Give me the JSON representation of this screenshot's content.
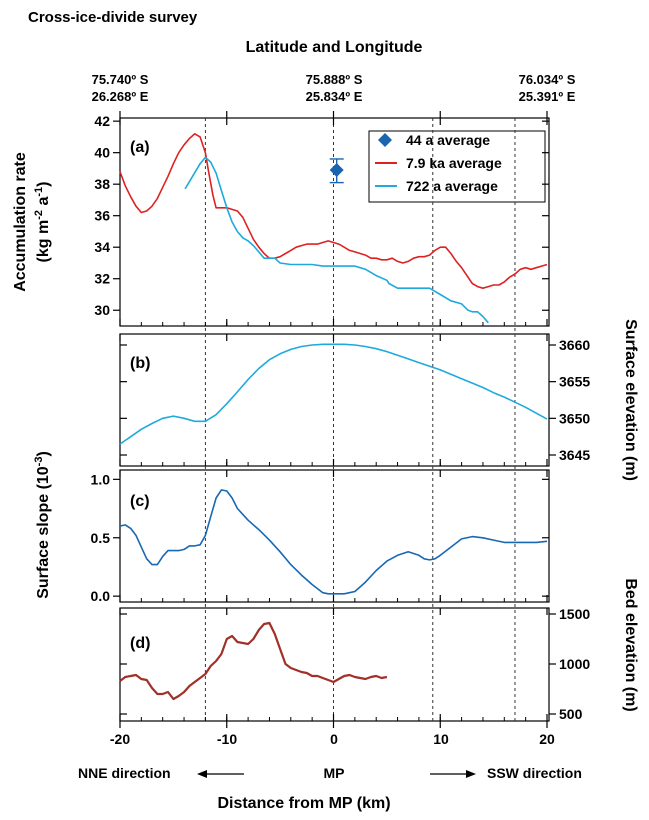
{
  "figure": {
    "title": "Cross-ice-divide survey",
    "top_axis_title": "Latitude and Longitude",
    "top_ticks": [
      {
        "x": -20,
        "lat": "75.740º S",
        "lon": "26.268º E"
      },
      {
        "x": 0,
        "lat": "75.888º S",
        "lon": "25.834º E"
      },
      {
        "x": 20,
        "lat": "76.034º S",
        "lon": "25.391º E"
      }
    ],
    "xlabel": "Distance from MP (km)",
    "x_tick_labels": [
      "-20",
      "-10",
      "0",
      "10",
      "20"
    ],
    "x_ticks": [
      -20,
      -10,
      0,
      10,
      20
    ],
    "xlim": [
      -20,
      20
    ],
    "direction_left": "NNE direction",
    "direction_center": "MP",
    "direction_right": "SSW direction",
    "reference_lines_x": [
      -12,
      0,
      9.3,
      17
    ],
    "colors": {
      "red": "#dd2222",
      "cyan": "#1eaadd",
      "blue": "#1868b4",
      "diamond": "#1a64b0",
      "brown": "#a03028",
      "grid": "#333333"
    }
  },
  "chart_data": [
    {
      "type": "line",
      "panel": "(a)",
      "ylabel_line1": "Accumulation rate",
      "ylabel_line2": "(kg m",
      "ylabel_sup1": "-2",
      "ylabel_mid": " a",
      "ylabel_sup2": "-1",
      "ylabel_end": ")",
      "ylim": [
        29,
        42.2
      ],
      "yticks": [
        30,
        32,
        34,
        36,
        38,
        40,
        42
      ],
      "ytick_labels": [
        "30",
        "32",
        "34",
        "36",
        "38",
        "40",
        "42"
      ],
      "legend_position": "top-right",
      "series": [
        {
          "name": "44 a average",
          "kind": "point",
          "x": 0.3,
          "y": 38.9,
          "err_low": 38.1,
          "err_high": 39.6
        },
        {
          "name": "7.9 ka average",
          "kind": "line",
          "x": [
            -20,
            -19.5,
            -19,
            -18.5,
            -18,
            -17.5,
            -17,
            -16.5,
            -16,
            -15.5,
            -15,
            -14.5,
            -14,
            -13.5,
            -13,
            -12.5,
            -12,
            -11.7,
            -11.3,
            -11,
            -10.5,
            -10,
            -9.5,
            -9,
            -8.5,
            -8,
            -7.5,
            -7,
            -6.5,
            -6,
            -5.5,
            -5,
            -4.5,
            -4,
            -3.5,
            -3,
            -2.5,
            -2,
            -1.5,
            -1,
            -0.5,
            0,
            0.5,
            1,
            1.5,
            2,
            2.5,
            3,
            3.5,
            4,
            4.5,
            5,
            5.5,
            6,
            6.5,
            7,
            7.5,
            8,
            8.5,
            9,
            9.5,
            10,
            10.5,
            11,
            11.5,
            12,
            12.5,
            13,
            13.5,
            14,
            14.5,
            15,
            15.5,
            16,
            16.5,
            17,
            17.5,
            18,
            18.5,
            19,
            19.5,
            20
          ],
          "y": [
            38.8,
            37.9,
            37.2,
            36.6,
            36.2,
            36.3,
            36.6,
            37.1,
            37.8,
            38.5,
            39.3,
            40.0,
            40.5,
            40.9,
            41.2,
            41.0,
            40.0,
            38.8,
            37.3,
            36.5,
            36.5,
            36.5,
            36.4,
            36.3,
            35.9,
            35.2,
            34.5,
            34.0,
            33.6,
            33.3,
            33.3,
            33.4,
            33.6,
            33.8,
            34.0,
            34.1,
            34.2,
            34.2,
            34.2,
            34.3,
            34.4,
            34.3,
            34.2,
            34.0,
            33.8,
            33.7,
            33.6,
            33.5,
            33.3,
            33.3,
            33.2,
            33.2,
            33.3,
            33.1,
            33.0,
            33.1,
            33.3,
            33.4,
            33.4,
            33.5,
            33.8,
            34.0,
            34.0,
            33.6,
            33.1,
            32.7,
            32.2,
            31.7,
            31.5,
            31.4,
            31.5,
            31.6,
            31.6,
            31.8,
            32.1,
            32.3,
            32.6,
            32.7,
            32.6,
            32.7,
            32.8,
            32.9
          ]
        },
        {
          "name": "722 a average",
          "kind": "line",
          "x": [
            -13.9,
            -13.2,
            -12.5,
            -12.0,
            -11.5,
            -11.0,
            -10.5,
            -10.0,
            -9.5,
            -9.0,
            -8.5,
            -8.0,
            -7.5,
            -7.0,
            -6.5,
            -6.0,
            -5.5,
            -5.0,
            -4.0,
            -3.0,
            -2.0,
            -1.0,
            0,
            1.0,
            2.0,
            3.0,
            4.0,
            5.0,
            5.2,
            6.0,
            7.0,
            8.0,
            9.0,
            9.5,
            10.0,
            11.0,
            12.0,
            12.6,
            13.0,
            13.5,
            14.0,
            14.5
          ],
          "y": [
            37.7,
            38.5,
            39.3,
            39.7,
            39.4,
            38.7,
            37.6,
            36.5,
            35.6,
            35.0,
            34.6,
            34.4,
            34.1,
            33.7,
            33.3,
            33.3,
            33.3,
            33.0,
            32.9,
            32.9,
            32.9,
            32.8,
            32.8,
            32.8,
            32.8,
            32.6,
            32.2,
            31.9,
            31.7,
            31.4,
            31.4,
            31.4,
            31.4,
            31.2,
            31.0,
            30.6,
            30.4,
            30.0,
            29.9,
            29.9,
            29.6,
            29.2
          ]
        }
      ]
    },
    {
      "type": "line",
      "panel": "(b)",
      "ylabel": "Surface elevation (m)",
      "ylim": [
        3643.5,
        3661.5
      ],
      "yticks": [
        3645,
        3650,
        3655,
        3660
      ],
      "ytick_labels": [
        "3645",
        "3650",
        "3655",
        "3660"
      ],
      "series": [
        {
          "kind": "line",
          "x": [
            -20,
            -19,
            -18,
            -17,
            -16,
            -15,
            -14,
            -13,
            -12,
            -11,
            -10,
            -9,
            -8,
            -7,
            -6,
            -5,
            -4,
            -3,
            -2,
            -1,
            0,
            1,
            2,
            3,
            4,
            5,
            6,
            7,
            8,
            9,
            10,
            11,
            12,
            13,
            14,
            15,
            16,
            17,
            18,
            19,
            20
          ],
          "y": [
            3646.5,
            3647.5,
            3648.5,
            3649.3,
            3650.0,
            3650.3,
            3650.0,
            3649.6,
            3649.6,
            3650.5,
            3652.0,
            3653.6,
            3655.3,
            3656.8,
            3658.0,
            3658.8,
            3659.4,
            3659.8,
            3660.0,
            3660.1,
            3660.1,
            3660.1,
            3660.0,
            3659.8,
            3659.5,
            3659.1,
            3658.6,
            3658.1,
            3657.6,
            3657.1,
            3656.6,
            3656.0,
            3655.4,
            3654.8,
            3654.2,
            3653.5,
            3652.9,
            3652.2,
            3651.5,
            3650.7,
            3649.9
          ]
        }
      ]
    },
    {
      "type": "line",
      "panel": "(c)",
      "ylabel": "Surface slope (10",
      "ylabel_sup": "-3",
      "ylabel_end": ")",
      "ylim": [
        -0.05,
        1.08
      ],
      "yticks": [
        0.0,
        0.5,
        1.0
      ],
      "ytick_labels": [
        "0.0",
        "0.5",
        "1.0"
      ],
      "series": [
        {
          "kind": "line",
          "x": [
            -20,
            -19.5,
            -19,
            -18.5,
            -18,
            -17.5,
            -17,
            -16.5,
            -16,
            -15.5,
            -15,
            -14.5,
            -14,
            -13.5,
            -13,
            -12.5,
            -12,
            -11.5,
            -11,
            -10.5,
            -10,
            -9.5,
            -9,
            -8,
            -7,
            -6,
            -5,
            -4,
            -3,
            -2,
            -1,
            -0.5,
            0,
            0.5,
            1,
            1.5,
            2,
            3,
            4,
            5,
            6,
            7,
            8,
            8.5,
            9,
            9.5,
            10,
            11,
            12,
            13,
            14,
            15,
            16,
            17,
            18,
            19,
            20
          ],
          "y": [
            0.6,
            0.61,
            0.58,
            0.52,
            0.42,
            0.32,
            0.27,
            0.27,
            0.34,
            0.39,
            0.39,
            0.39,
            0.4,
            0.43,
            0.43,
            0.44,
            0.52,
            0.68,
            0.84,
            0.91,
            0.9,
            0.84,
            0.75,
            0.65,
            0.57,
            0.48,
            0.38,
            0.27,
            0.18,
            0.1,
            0.03,
            0.02,
            0.02,
            0.02,
            0.02,
            0.03,
            0.04,
            0.12,
            0.22,
            0.3,
            0.35,
            0.38,
            0.35,
            0.32,
            0.31,
            0.32,
            0.35,
            0.42,
            0.49,
            0.51,
            0.5,
            0.48,
            0.46,
            0.46,
            0.46,
            0.46,
            0.47
          ]
        }
      ]
    },
    {
      "type": "line",
      "panel": "(d)",
      "ylabel": "Bed elevation (m)",
      "ylim": [
        430,
        1560
      ],
      "yticks": [
        500,
        1000,
        1500
      ],
      "ytick_labels": [
        "500",
        "1000",
        "1500"
      ],
      "series": [
        {
          "kind": "line",
          "x": [
            -20,
            -19.5,
            -19,
            -18.5,
            -18,
            -17.5,
            -17,
            -16.5,
            -16,
            -15.5,
            -15,
            -14.5,
            -14,
            -13.5,
            -13,
            -12.5,
            -12,
            -11.5,
            -11,
            -10.5,
            -10,
            -9.5,
            -9,
            -8.5,
            -8,
            -7.5,
            -7,
            -6.5,
            -6,
            -5.5,
            -5,
            -4.5,
            -4,
            -3.5,
            -3,
            -2.5,
            -2,
            -1.5,
            -1,
            -0.5,
            0,
            0.5,
            1,
            1.5,
            2,
            2.5,
            3,
            3.5,
            4,
            4.5,
            5
          ],
          "y": [
            830,
            870,
            880,
            890,
            850,
            840,
            760,
            700,
            700,
            720,
            650,
            680,
            720,
            780,
            820,
            860,
            900,
            980,
            1030,
            1100,
            1250,
            1280,
            1220,
            1210,
            1200,
            1250,
            1340,
            1400,
            1410,
            1300,
            1150,
            1000,
            960,
            940,
            920,
            910,
            880,
            880,
            860,
            840,
            820,
            850,
            880,
            890,
            870,
            860,
            850,
            870,
            880,
            860,
            870
          ]
        }
      ]
    }
  ]
}
